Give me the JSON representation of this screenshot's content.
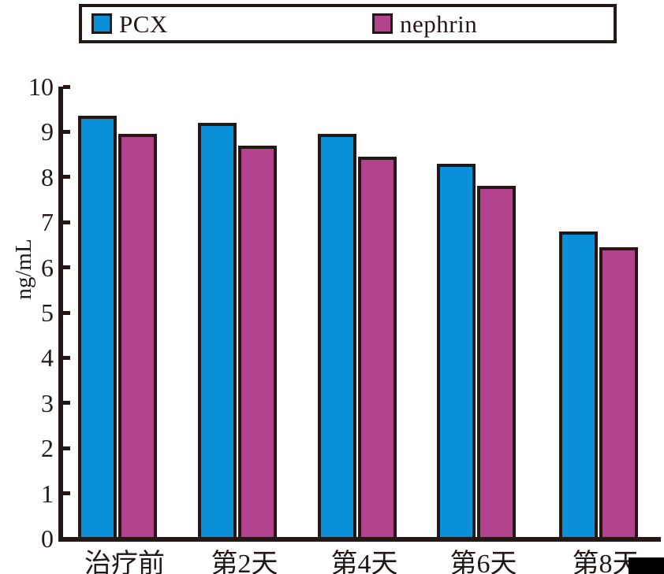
{
  "chart_data": {
    "type": "bar",
    "title": "",
    "xlabel": "",
    "ylabel": "ng/mL",
    "categories": [
      "治疗前",
      "第2天",
      "第4天",
      "第6天",
      "第8天"
    ],
    "series": [
      {
        "name": "PCX",
        "color": "#0990D9",
        "values": [
          9.35,
          9.2,
          8.95,
          8.3,
          6.8
        ]
      },
      {
        "name": "nephrin",
        "color": "#B2428C",
        "values": [
          8.95,
          8.7,
          8.45,
          7.8,
          6.45
        ]
      }
    ],
    "ylim": [
      0,
      10
    ],
    "yticks": [
      0,
      1,
      2,
      3,
      4,
      5,
      6,
      7,
      8,
      9,
      10
    ],
    "grid": false,
    "legend_position": "top",
    "bar_outline": true
  },
  "legend": {
    "items": [
      {
        "label": "PCX"
      },
      {
        "label": "nephrin"
      }
    ]
  },
  "colors": {
    "pcx_fill": "#0990D9",
    "nephrin_fill": "#B2428C",
    "axis_and_text": "#231815",
    "background": "#FFFFFF",
    "corner_artifact": "#000000"
  }
}
